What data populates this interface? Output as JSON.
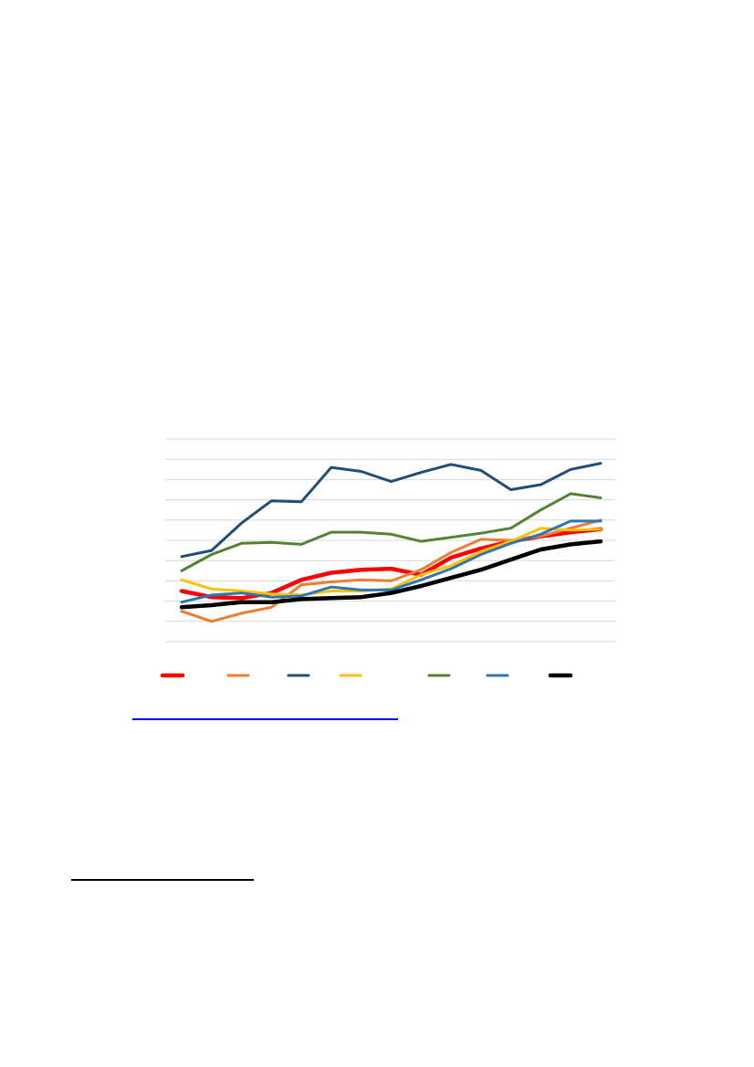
{
  "chart_data": {
    "type": "line",
    "gridline_count": 11,
    "grid": true,
    "legend_placement": "bottom",
    "x_count": 15,
    "y_range": [
      0,
      10
    ],
    "series": [
      {
        "color": "#ff0000",
        "width_class": "thick",
        "values": [
          2.5,
          2.2,
          2.15,
          2.4,
          3.05,
          3.4,
          3.55,
          3.6,
          3.3,
          4.15,
          4.6,
          4.95,
          5.2,
          5.4,
          5.55
        ]
      },
      {
        "color": "#ed7d31",
        "width_class": "normal",
        "values": [
          1.5,
          1.0,
          1.4,
          1.7,
          2.8,
          2.95,
          3.05,
          3.0,
          3.55,
          4.4,
          5.05,
          5.0,
          5.2,
          5.6,
          6.0
        ]
      },
      {
        "color": "#1f4e79",
        "width_class": "normal",
        "values": [
          4.2,
          4.5,
          5.85,
          6.95,
          6.9,
          8.6,
          8.4,
          7.9,
          8.35,
          8.75,
          8.45,
          7.5,
          7.75,
          8.5,
          8.8
        ]
      },
      {
        "color": "#ffc000",
        "width_class": "normal",
        "values": [
          3.05,
          2.6,
          2.5,
          2.35,
          2.3,
          2.5,
          2.5,
          2.6,
          3.3,
          3.75,
          4.45,
          4.95,
          5.6,
          5.5,
          5.55
        ]
      },
      {
        "color": "#548235",
        "width_class": "normal",
        "values": [
          3.5,
          4.3,
          4.85,
          4.9,
          4.8,
          5.4,
          5.4,
          5.3,
          4.95,
          5.15,
          5.35,
          5.6,
          6.5,
          7.3,
          7.1
        ]
      },
      {
        "color": "#2e75b6",
        "width_class": "normal",
        "values": [
          1.95,
          2.3,
          2.4,
          2.2,
          2.25,
          2.7,
          2.55,
          2.55,
          3.05,
          3.6,
          4.3,
          4.85,
          5.3,
          5.95,
          5.95
        ]
      },
      {
        "color": "#000000",
        "width_class": "thick",
        "values": [
          1.7,
          1.8,
          1.95,
          1.95,
          2.1,
          2.15,
          2.2,
          2.4,
          2.75,
          3.15,
          3.55,
          4.05,
          4.55,
          4.8,
          4.95
        ]
      }
    ]
  }
}
